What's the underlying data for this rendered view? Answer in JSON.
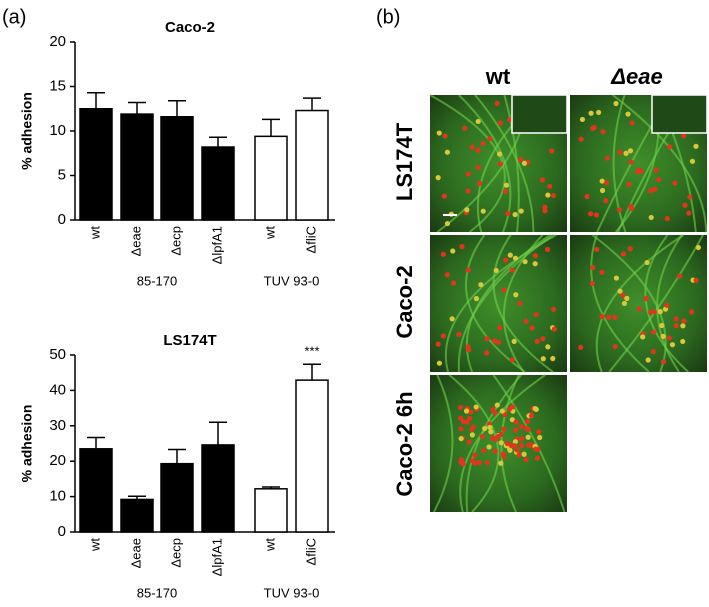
{
  "panel_a": {
    "label": "(a)"
  },
  "chart_data": [
    {
      "type": "bar",
      "title": "Caco-2",
      "y_label": "% adhesion",
      "categories": [
        "wt",
        "Δeae",
        "Δecp",
        "ΔlpfA1",
        "wt",
        "ΔfliC"
      ],
      "series": [
        {
          "values": [
            12.5,
            11.9,
            11.6,
            8.2,
            9.4,
            12.3
          ],
          "errors": [
            1.8,
            1.3,
            1.8,
            1.1,
            1.9,
            1.4
          ],
          "colors": [
            "#000000",
            "#000000",
            "#000000",
            "#000000",
            "#ffffff",
            "#ffffff"
          ]
        }
      ],
      "groups": [
        "85-170",
        "TUV 93-0"
      ],
      "ylim": [
        0,
        20
      ],
      "yticks": [
        0,
        5,
        10,
        15,
        20
      ]
    },
    {
      "type": "bar",
      "title": "LS174T",
      "y_label": "% adhesion",
      "categories": [
        "wt",
        "Δeae",
        "Δecp",
        "ΔlpfA1",
        "wt",
        "ΔfliC"
      ],
      "series": [
        {
          "values": [
            23.5,
            9.2,
            19.3,
            24.6,
            12.2,
            42.9
          ],
          "errors": [
            3.2,
            0.9,
            4.0,
            6.4,
            0.5,
            4.5
          ],
          "colors": [
            "#000000",
            "#000000",
            "#000000",
            "#000000",
            "#ffffff",
            "#ffffff"
          ]
        }
      ],
      "groups": [
        "85-170",
        "TUV 93-0"
      ],
      "annotations": [
        {
          "category": 5,
          "text": "***"
        }
      ],
      "ylim": [
        0,
        50
      ],
      "yticks": [
        0,
        10,
        20,
        30,
        40,
        50
      ]
    }
  ],
  "panel_b": {
    "label": "(b)",
    "columns": [
      "wt",
      "Δeae"
    ],
    "rows": [
      "LS174T",
      "Caco-2",
      "Caco-2 6h"
    ]
  }
}
